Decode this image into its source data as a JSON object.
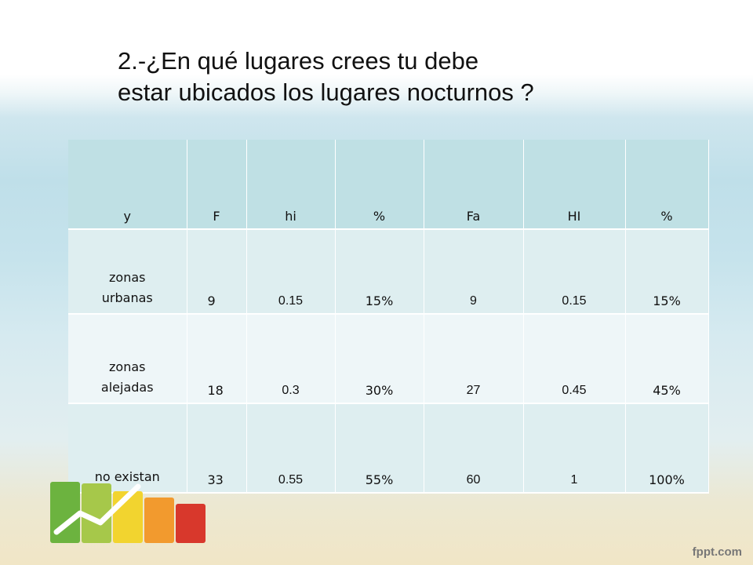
{
  "title": {
    "line1": "2.-¿En qué lugares crees tu debe",
    "line2": "estar ubicados los lugares nocturnos ?"
  },
  "table": {
    "headers": [
      "y",
      "F",
      "hi",
      "%",
      "Fa",
      "HI",
      "%"
    ],
    "rows": [
      {
        "y": "zonas urbanas",
        "y_lines": [
          "zonas",
          "urbanas"
        ],
        "F": "9",
        "hi": "0.15",
        "pct": "15%",
        "Fa": "9",
        "HI": "0.15",
        "pct2": "15%"
      },
      {
        "y": "zonas alejadas",
        "y_lines": [
          "zonas",
          "alejadas"
        ],
        "F": "18",
        "hi": "0.3",
        "pct": "30%",
        "Fa": "27",
        "HI": "0.45",
        "pct2": "45%"
      },
      {
        "y": "no existan",
        "y_lines": [
          "no existan"
        ],
        "F": "33",
        "hi": "0.55",
        "pct": "55%",
        "Fa": "60",
        "HI": "1",
        "pct2": "100%"
      }
    ]
  },
  "branding": {
    "logo_text": "fppt.com"
  },
  "colors": {
    "header_bg": "#bfe0e4",
    "row_odd_bg": "#deeef0",
    "row_even_bg": "#eef6f8"
  }
}
